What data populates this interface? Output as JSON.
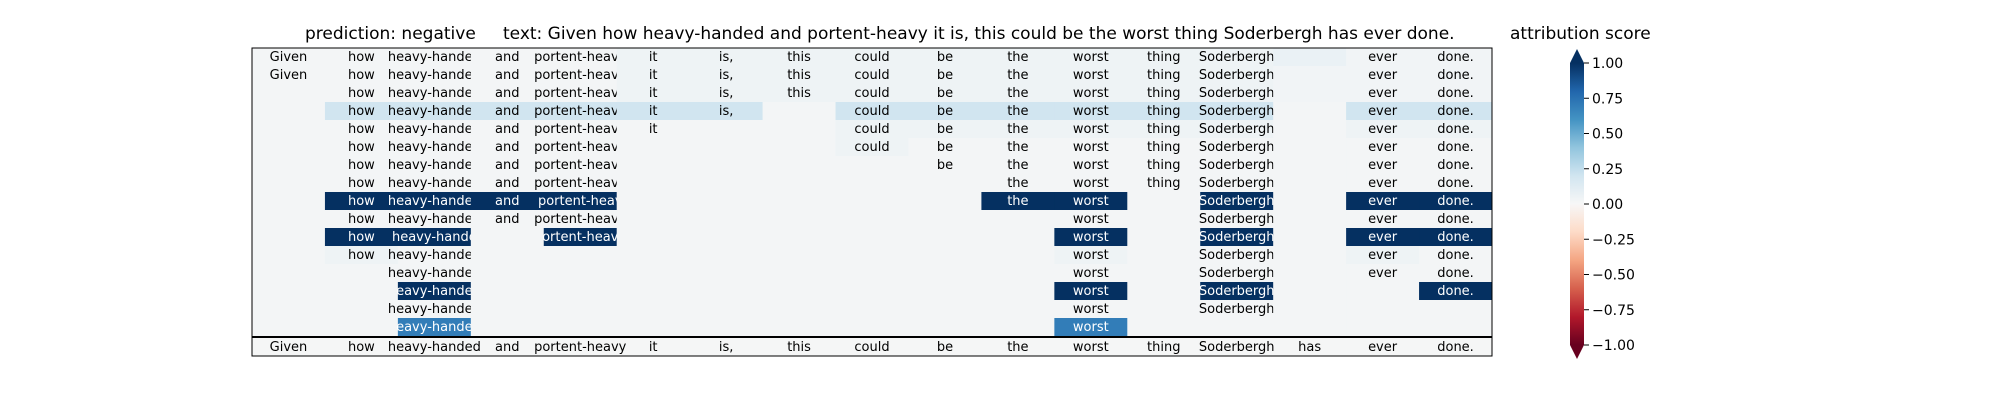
{
  "header": {
    "prediction": "prediction:  negative",
    "text": "text:  Given how heavy-handed and portent-heavy it is, this could be the worst thing Soderbergh has ever done.",
    "colorbar_title": "attribution score"
  },
  "chart_data": {
    "type": "heatmap",
    "title": "",
    "tokens": [
      "Given",
      "how",
      "heavy-handed",
      "and",
      "portent-heavy",
      "it",
      "is,",
      "this",
      "could",
      "be",
      "the",
      "worst",
      "thing",
      "Soderbergh",
      "has",
      "ever",
      "done."
    ],
    "rows": [
      {
        "visible": [
          "Given",
          "how",
          "heavy-handed",
          "and",
          "portent-heavy",
          "it",
          "is,",
          "this",
          "could",
          "be",
          "the",
          "worst",
          "thing",
          "Soderbergh",
          "",
          "ever",
          "done."
        ],
        "values": [
          0.02,
          0.02,
          0.02,
          0.02,
          0.02,
          0.05,
          0.05,
          0.05,
          0.05,
          0.05,
          0.05,
          0.05,
          0.05,
          0.05,
          0.07,
          0.03,
          0.03
        ]
      },
      {
        "visible": [
          "Given",
          "how",
          "heavy-handed",
          "and",
          "portent-heavy",
          "it",
          "is,",
          "this",
          "could",
          "be",
          "the",
          "worst",
          "thing",
          "Soderbergh",
          "",
          "ever",
          "done."
        ],
        "values": [
          0.02,
          0.02,
          0.02,
          0.02,
          0.02,
          0.05,
          0.05,
          0.05,
          0.05,
          0.05,
          0.05,
          0.05,
          0.05,
          0.05,
          0.03,
          0.03,
          0.03
        ]
      },
      {
        "visible": [
          "",
          "how",
          "heavy-handed",
          "and",
          "portent-heavy",
          "it",
          "is,",
          "this",
          "could",
          "be",
          "the",
          "worst",
          "thing",
          "Soderbergh",
          "",
          "ever",
          "done."
        ],
        "values": [
          0.02,
          0.02,
          0.02,
          0.02,
          0.02,
          0.05,
          0.05,
          0.05,
          0.05,
          0.05,
          0.05,
          0.05,
          0.05,
          0.05,
          0.03,
          0.03,
          0.03
        ]
      },
      {
        "visible": [
          "",
          "how",
          "heavy-handed",
          "and",
          "portent-heavy",
          "it",
          "is,",
          "",
          "could",
          "be",
          "the",
          "worst",
          "thing",
          "Soderbergh",
          "",
          "ever",
          "done."
        ],
        "values": [
          0.02,
          0.2,
          0.2,
          0.2,
          0.2,
          0.2,
          0.2,
          0.02,
          0.2,
          0.2,
          0.2,
          0.2,
          0.2,
          0.2,
          0.02,
          0.2,
          0.2
        ]
      },
      {
        "visible": [
          "",
          "how",
          "heavy-handed",
          "and",
          "portent-heavy",
          "it",
          "",
          "",
          "could",
          "be",
          "the",
          "worst",
          "thing",
          "Soderbergh",
          "",
          "ever",
          "done."
        ],
        "values": [
          0.02,
          0.02,
          0.02,
          0.02,
          0.02,
          0.02,
          0.02,
          0.02,
          0.05,
          0.05,
          0.05,
          0.05,
          0.05,
          0.05,
          0.02,
          0.05,
          0.05
        ]
      },
      {
        "visible": [
          "",
          "how",
          "heavy-handed",
          "and",
          "portent-heavy",
          "",
          "",
          "",
          "could",
          "be",
          "the",
          "worst",
          "thing",
          "Soderbergh",
          "",
          "ever",
          "done."
        ],
        "values": [
          0.02,
          0.02,
          0.02,
          0.02,
          0.02,
          0.02,
          0.02,
          0.02,
          0.05,
          0.02,
          0.02,
          0.02,
          0.02,
          0.02,
          0.02,
          0.02,
          0.02
        ]
      },
      {
        "visible": [
          "",
          "how",
          "heavy-handed",
          "and",
          "portent-heavy",
          "",
          "",
          "",
          "",
          "be",
          "the",
          "worst",
          "thing",
          "Soderbergh",
          "",
          "ever",
          "done."
        ],
        "values": [
          0.02,
          0.02,
          0.02,
          0.02,
          0.02,
          0.02,
          0.02,
          0.02,
          0.02,
          0.02,
          0.02,
          0.02,
          0.02,
          0.02,
          0.02,
          0.02,
          0.02
        ]
      },
      {
        "visible": [
          "",
          "how",
          "heavy-handed",
          "and",
          "portent-heavy",
          "",
          "",
          "",
          "",
          "",
          "the",
          "worst",
          "thing",
          "Soderbergh",
          "",
          "ever",
          "done."
        ],
        "values": [
          0.02,
          0.02,
          0.02,
          0.02,
          0.02,
          0.02,
          0.02,
          0.02,
          0.02,
          0.02,
          0.02,
          0.02,
          0.02,
          0.02,
          0.02,
          0.02,
          0.02
        ]
      },
      {
        "visible": [
          "",
          "how",
          "heavy-handed",
          "and",
          "portent-heav",
          "",
          "",
          "",
          "",
          "",
          "the",
          "worst",
          "",
          "Soderbergh",
          "",
          "ever",
          "done."
        ],
        "values": [
          0.02,
          1.0,
          1.0,
          1.0,
          1.0,
          0.02,
          0.02,
          0.02,
          0.02,
          0.02,
          1.0,
          1.0,
          0.02,
          1.0,
          0.02,
          1.0,
          1.0
        ]
      },
      {
        "visible": [
          "",
          "how",
          "heavy-handed",
          "and",
          "portent-heavy",
          "",
          "",
          "",
          "",
          "",
          "",
          "worst",
          "",
          "Soderbergh",
          "",
          "ever",
          "done."
        ],
        "values": [
          0.02,
          0.02,
          0.02,
          0.02,
          0.02,
          0.02,
          0.02,
          0.02,
          0.02,
          0.02,
          0.02,
          0.02,
          0.02,
          0.02,
          0.02,
          0.02,
          0.02
        ]
      },
      {
        "visible": [
          "",
          "how",
          "heavy-hande",
          "",
          "ortent-heav",
          "",
          "",
          "",
          "",
          "",
          "",
          "worst",
          "",
          "Soderbergh",
          "",
          "ever",
          "done."
        ],
        "values": [
          0.02,
          1.0,
          1.0,
          0.02,
          1.0,
          0.02,
          0.02,
          0.02,
          0.02,
          0.02,
          0.02,
          1.0,
          0.02,
          1.0,
          0.02,
          1.0,
          1.0
        ]
      },
      {
        "visible": [
          "",
          "how",
          "heavy-handed",
          "",
          "",
          "",
          "",
          "",
          "",
          "",
          "",
          "worst",
          "",
          "Soderbergh",
          "",
          "ever",
          "done."
        ],
        "values": [
          0.02,
          0.05,
          0.02,
          0.02,
          0.02,
          0.02,
          0.02,
          0.02,
          0.02,
          0.02,
          0.02,
          0.05,
          0.02,
          0.02,
          0.02,
          0.05,
          0.02
        ]
      },
      {
        "visible": [
          "",
          "",
          "heavy-handed",
          "",
          "",
          "",
          "",
          "",
          "",
          "",
          "",
          "worst",
          "",
          "Soderbergh",
          "",
          "ever",
          "done."
        ],
        "values": [
          0.02,
          0.02,
          0.02,
          0.02,
          0.02,
          0.02,
          0.02,
          0.02,
          0.02,
          0.02,
          0.02,
          0.02,
          0.02,
          0.02,
          0.02,
          0.02,
          0.02
        ]
      },
      {
        "visible": [
          "",
          "",
          "eavy-hande",
          "",
          "",
          "",
          "",
          "",
          "",
          "",
          "",
          "worst",
          "",
          "Soderbergh",
          "",
          "",
          "done."
        ],
        "values": [
          0.02,
          0.02,
          1.0,
          0.02,
          0.02,
          0.02,
          0.02,
          0.02,
          0.02,
          0.02,
          0.02,
          1.0,
          0.02,
          1.0,
          0.02,
          0.02,
          1.0
        ]
      },
      {
        "visible": [
          "",
          "",
          "heavy-handed",
          "",
          "",
          "",
          "",
          "",
          "",
          "",
          "",
          "worst",
          "",
          "Soderbergh",
          "",
          "",
          ""
        ],
        "values": [
          0.02,
          0.02,
          0.02,
          0.02,
          0.02,
          0.02,
          0.02,
          0.02,
          0.02,
          0.02,
          0.02,
          0.02,
          0.02,
          0.02,
          0.02,
          0.02,
          0.02
        ]
      },
      {
        "visible": [
          "",
          "",
          "eavy-hande",
          "",
          "",
          "",
          "",
          "",
          "",
          "",
          "",
          "worst",
          "",
          "",
          "",
          "",
          ""
        ],
        "values": [
          0.02,
          0.02,
          0.7,
          0.02,
          0.02,
          0.02,
          0.02,
          0.02,
          0.02,
          0.02,
          0.02,
          0.7,
          0.02,
          0.02,
          0.02,
          0.02,
          0.02
        ]
      }
    ],
    "base_row": [
      "Given",
      "how",
      "heavy-handed",
      "and",
      "portent-heavy",
      "it",
      "is,",
      "this",
      "could",
      "be",
      "the",
      "worst",
      "thing",
      "Soderbergh",
      "has",
      "ever",
      "done."
    ],
    "colorbar": {
      "range": [
        -1.0,
        1.0
      ],
      "ticks": [
        "1.00",
        "0.75",
        "0.50",
        "0.25",
        "0.00",
        "−0.25",
        "−0.50",
        "−0.75",
        "−1.00"
      ],
      "tick_values": [
        1.0,
        0.75,
        0.5,
        0.25,
        0.0,
        -0.25,
        -0.5,
        -0.75,
        -1.0
      ],
      "colormap": "RdBu",
      "stops": [
        "#67001f",
        "#b2182b",
        "#d6604d",
        "#f4a582",
        "#fddbc7",
        "#f7f7f7",
        "#d1e5f0",
        "#92c5de",
        "#4393c3",
        "#2166ac",
        "#053061"
      ]
    }
  }
}
